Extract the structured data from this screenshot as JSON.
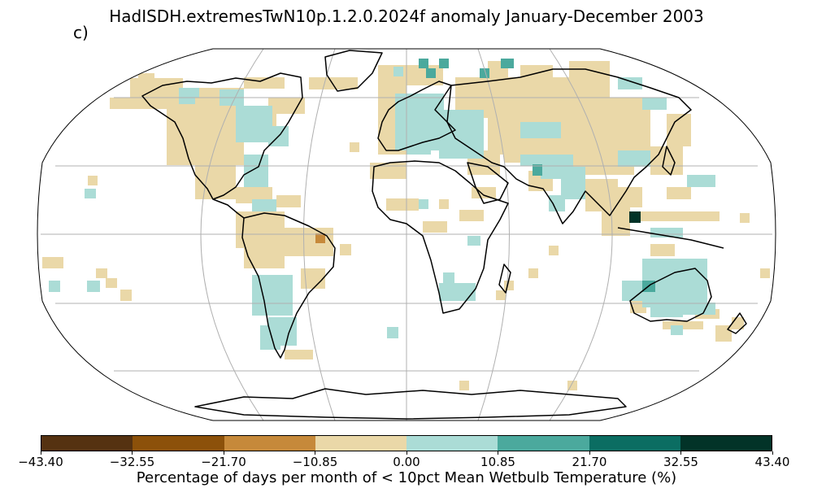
{
  "figure": {
    "title": "HadISDH.extremesTwN10p.1.2.0.2024f anomaly January-December 2003",
    "panel_label": "c)"
  },
  "colorbar": {
    "label": "Percentage of days per month of < 10pct Mean Wetbulb Temperature (%)",
    "ticks": [
      "−43.40",
      "−32.55",
      "−21.70",
      "−10.85",
      "0.00",
      "10.85",
      "21.70",
      "32.55",
      "43.40"
    ],
    "colors": [
      "#553211",
      "#8c510a",
      "#c6893a",
      "#ead8a8",
      "#abdcd6",
      "#4ba99d",
      "#0b6d62",
      "#023328"
    ]
  },
  "map": {
    "projection": "Robinson-like global",
    "cell_colors": {
      "tan": "#ead8a8",
      "teal_light": "#abdcd6",
      "teal_mid": "#4ba99d",
      "teal_dark": "#023328",
      "brown": "#c6893a"
    }
  }
}
